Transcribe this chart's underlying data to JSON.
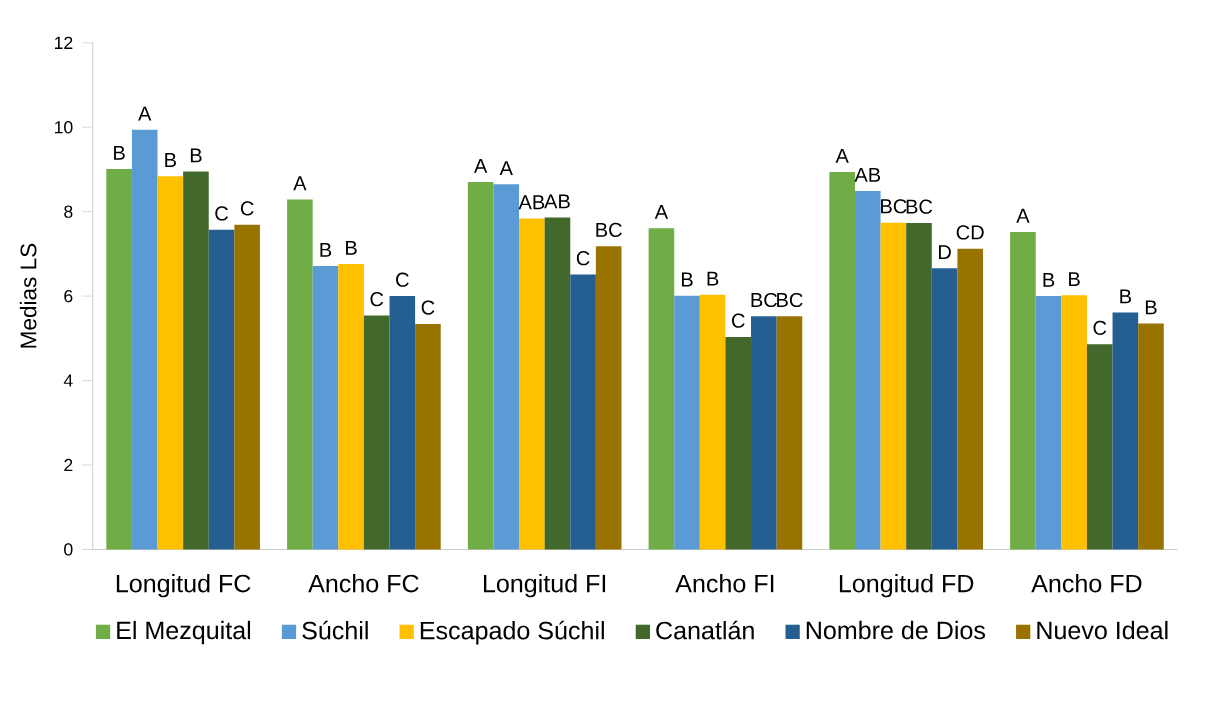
{
  "chart_data": {
    "type": "bar",
    "ylabel": "Medias LS",
    "categories": [
      "Longitud FC",
      "Ancho FC",
      "Longitud FI",
      "Ancho FI",
      "Longitud FD",
      "Ancho FD"
    ],
    "ylim": [
      0,
      12
    ],
    "yticks": [
      0,
      2,
      4,
      6,
      8,
      10,
      12
    ],
    "grid": false,
    "legend": "bottom",
    "series": [
      {
        "name": "El Mezquital",
        "color": "#70ad47",
        "values": [
          9.01,
          8.29,
          8.7,
          7.61,
          8.94,
          7.52
        ],
        "value_labels": [
          "B",
          "A",
          "A",
          "A",
          "A",
          "A"
        ]
      },
      {
        "name": "Súchil",
        "color": "#5b9bd5",
        "values": [
          9.94,
          6.71,
          8.65,
          6.01,
          8.49,
          6.0
        ],
        "value_labels": [
          "A",
          "B",
          "A",
          "B",
          "AB",
          "B"
        ]
      },
      {
        "name": "Escapado Súchil",
        "color": "#ffc000",
        "values": [
          8.84,
          6.76,
          7.84,
          6.03,
          7.74,
          6.02
        ],
        "value_labels": [
          "B",
          "B",
          "AB",
          "B",
          "BC",
          "B"
        ]
      },
      {
        "name": "Canatlán",
        "color": "#43682b",
        "values": [
          8.95,
          5.54,
          7.86,
          5.03,
          7.73,
          4.86
        ],
        "value_labels": [
          "B",
          "C",
          "AB",
          "C",
          "BC",
          "C"
        ]
      },
      {
        "name": "Nombre de Dios",
        "color": "#255e91",
        "values": [
          7.57,
          6.0,
          6.51,
          5.52,
          6.66,
          5.61
        ],
        "value_labels": [
          "C",
          "C",
          "C",
          "BC",
          "D",
          "B"
        ]
      },
      {
        "name": "Nuevo Ideal",
        "color": "#997300",
        "values": [
          7.69,
          5.34,
          7.18,
          5.52,
          7.12,
          5.35
        ],
        "value_labels": [
          "C",
          "C",
          "BC",
          "BC",
          "CD",
          "B"
        ]
      }
    ]
  }
}
